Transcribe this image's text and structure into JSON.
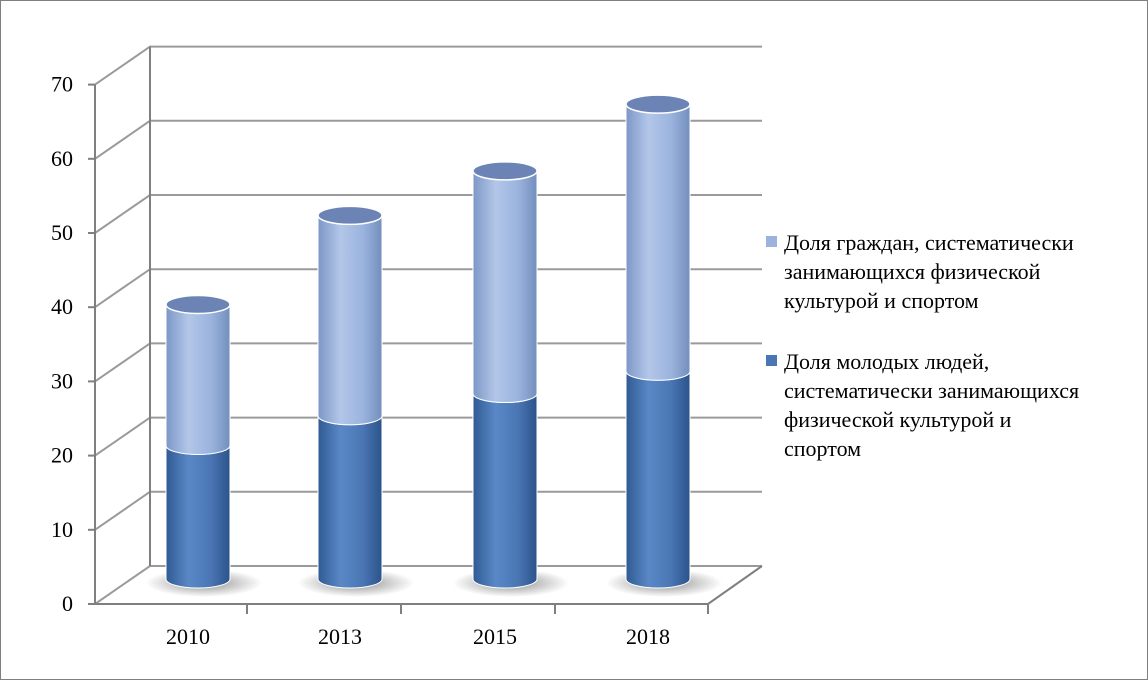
{
  "colors": {
    "young": "#4a76b4",
    "all": "#9bb4de",
    "grid": "#9a9a9a",
    "axis": "#7f7f7f"
  },
  "chart_data": {
    "type": "bar",
    "stacked": true,
    "style": "3d-cylinder",
    "categories": [
      "2010",
      "2013",
      "2015",
      "2018"
    ],
    "series": [
      {
        "name": "Доля молодых людей, систематически занимающихся физической культурой и спортом",
        "values": [
          18,
          22,
          25,
          28
        ]
      },
      {
        "name": "Доля граждан, систематически занимающихся физической культурой и спортом",
        "values": [
          19,
          27,
          30,
          36
        ]
      }
    ],
    "ylim": [
      0,
      70
    ],
    "yticks": [
      "0",
      "10",
      "20",
      "30",
      "40",
      "50",
      "60",
      "70"
    ],
    "grid": true,
    "legend": "right",
    "title": "",
    "xlabel": "",
    "ylabel": ""
  },
  "legend": {
    "items": [
      {
        "label": "Доля граждан, систематически занимающихся физической культурой и спортом",
        "color": "#9bb4de"
      },
      {
        "label": "Доля молодых людей, систематически занимающихся физической культурой и спортом",
        "color": "#4a76b4"
      }
    ]
  }
}
